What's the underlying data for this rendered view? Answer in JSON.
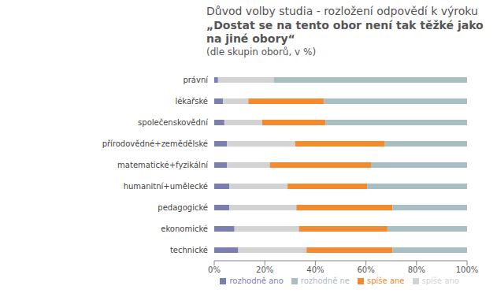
{
  "chart_data": {
    "type": "bar",
    "orientation": "horizontal",
    "stacked": true,
    "grid": false,
    "legend": "bottom",
    "data_labels": false,
    "title": "Důvod volby studia - rozložení odpovědí k výroku",
    "subtitle": "„Dostat se na tento obor není tak těžké jako na jiné obory“",
    "annotations": [
      "(dle skupin oborů, v %)"
    ],
    "categories": [
      "právní",
      "lékařské",
      "společenskovědní",
      "přírodovědné+zemědělské",
      "matematické+fyzikální",
      "humanitní+umělecké",
      "pedagogické",
      "ekonomické",
      "technické"
    ],
    "series": [
      {
        "name": "rozhodně ano",
        "color": "#7b7fb0",
        "values": [
          1.5,
          3.5,
          4,
          5,
          5,
          6,
          6,
          8,
          9.5
        ]
      },
      {
        "name": "spíše ano",
        "color": "#d3d3d3",
        "values": [
          22,
          10,
          15,
          27,
          17,
          23,
          26.5,
          25.5,
          27
        ]
      },
      {
        "name": "spíše ane",
        "color": "#f28b30",
        "values": [
          0,
          30,
          25,
          35.5,
          40,
          31.5,
          38,
          35,
          34
        ]
      },
      {
        "name": "rozhodně ne",
        "color": "#a9bec0",
        "values": [
          76.5,
          56.5,
          56,
          32.5,
          38,
          39.5,
          29.5,
          31.5,
          29.5
        ]
      }
    ],
    "xlim": [
      0,
      100
    ],
    "xticks": [
      {
        "value": 0,
        "label": "0%"
      },
      {
        "value": 20,
        "label": "20%"
      },
      {
        "value": 40,
        "label": "40%"
      },
      {
        "value": 60,
        "label": "60%"
      },
      {
        "value": 80,
        "label": "80%"
      },
      {
        "value": 100,
        "label": "100%"
      }
    ]
  }
}
